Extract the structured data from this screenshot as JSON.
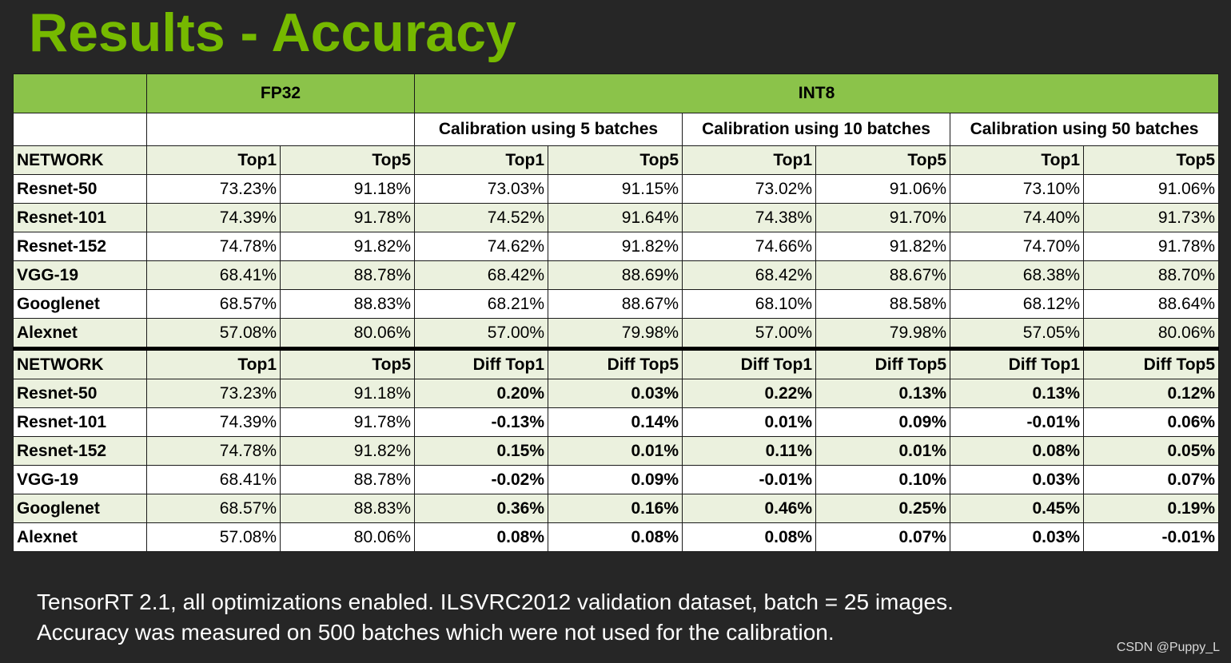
{
  "title": "Results - Accuracy",
  "group_headers": {
    "fp32": "FP32",
    "int8": "INT8"
  },
  "calibrations": [
    "Calibration using 5 batches",
    "Calibration using 10 batches",
    "Calibration using 50 batches"
  ],
  "accuracy_header": [
    "NETWORK",
    "Top1",
    "Top5",
    "Top1",
    "Top5",
    "Top1",
    "Top5",
    "Top1",
    "Top5"
  ],
  "accuracy_rows": [
    [
      "Resnet-50",
      "73.23%",
      "91.18%",
      "73.03%",
      "91.15%",
      "73.02%",
      "91.06%",
      "73.10%",
      "91.06%"
    ],
    [
      "Resnet-101",
      "74.39%",
      "91.78%",
      "74.52%",
      "91.64%",
      "74.38%",
      "91.70%",
      "74.40%",
      "91.73%"
    ],
    [
      "Resnet-152",
      "74.78%",
      "91.82%",
      "74.62%",
      "91.82%",
      "74.66%",
      "91.82%",
      "74.70%",
      "91.78%"
    ],
    [
      "VGG-19",
      "68.41%",
      "88.78%",
      "68.42%",
      "88.69%",
      "68.42%",
      "88.67%",
      "68.38%",
      "88.70%"
    ],
    [
      "Googlenet",
      "68.57%",
      "88.83%",
      "68.21%",
      "88.67%",
      "68.10%",
      "88.58%",
      "68.12%",
      "88.64%"
    ],
    [
      "Alexnet",
      "57.08%",
      "80.06%",
      "57.00%",
      "79.98%",
      "57.00%",
      "79.98%",
      "57.05%",
      "80.06%"
    ]
  ],
  "diff_header": [
    "NETWORK",
    "Top1",
    "Top5",
    "Diff Top1",
    "Diff Top5",
    "Diff Top1",
    "Diff Top5",
    "Diff Top1",
    "Diff Top5"
  ],
  "diff_rows": [
    [
      "Resnet-50",
      "73.23%",
      "91.18%",
      "0.20%",
      "0.03%",
      "0.22%",
      "0.13%",
      "0.13%",
      "0.12%"
    ],
    [
      "Resnet-101",
      "74.39%",
      "91.78%",
      "-0.13%",
      "0.14%",
      "0.01%",
      "0.09%",
      "-0.01%",
      "0.06%"
    ],
    [
      "Resnet-152",
      "74.78%",
      "91.82%",
      "0.15%",
      "0.01%",
      "0.11%",
      "0.01%",
      "0.08%",
      "0.05%"
    ],
    [
      "VGG-19",
      "68.41%",
      "88.78%",
      "-0.02%",
      "0.09%",
      "-0.01%",
      "0.10%",
      "0.03%",
      "0.07%"
    ],
    [
      "Googlenet",
      "68.57%",
      "88.83%",
      "0.36%",
      "0.16%",
      "0.46%",
      "0.25%",
      "0.45%",
      "0.19%"
    ],
    [
      "Alexnet",
      "57.08%",
      "80.06%",
      "0.08%",
      "0.08%",
      "0.08%",
      "0.07%",
      "0.03%",
      "-0.01%"
    ]
  ],
  "footnote": [
    "TensorRT 2.1, all optimizations enabled. ILSVRC2012 validation dataset, batch = 25 images.",
    "Accuracy was measured on 500 batches which were not used for the calibration."
  ],
  "watermark": "CSDN @Puppy_L",
  "colors": {
    "title": "#76B900",
    "header_green": "#8BC34A",
    "row_light": "#EBF1DE",
    "positive_diff": "#C0392B",
    "negative_diff": "#5A9E3A",
    "background": "#262626"
  }
}
